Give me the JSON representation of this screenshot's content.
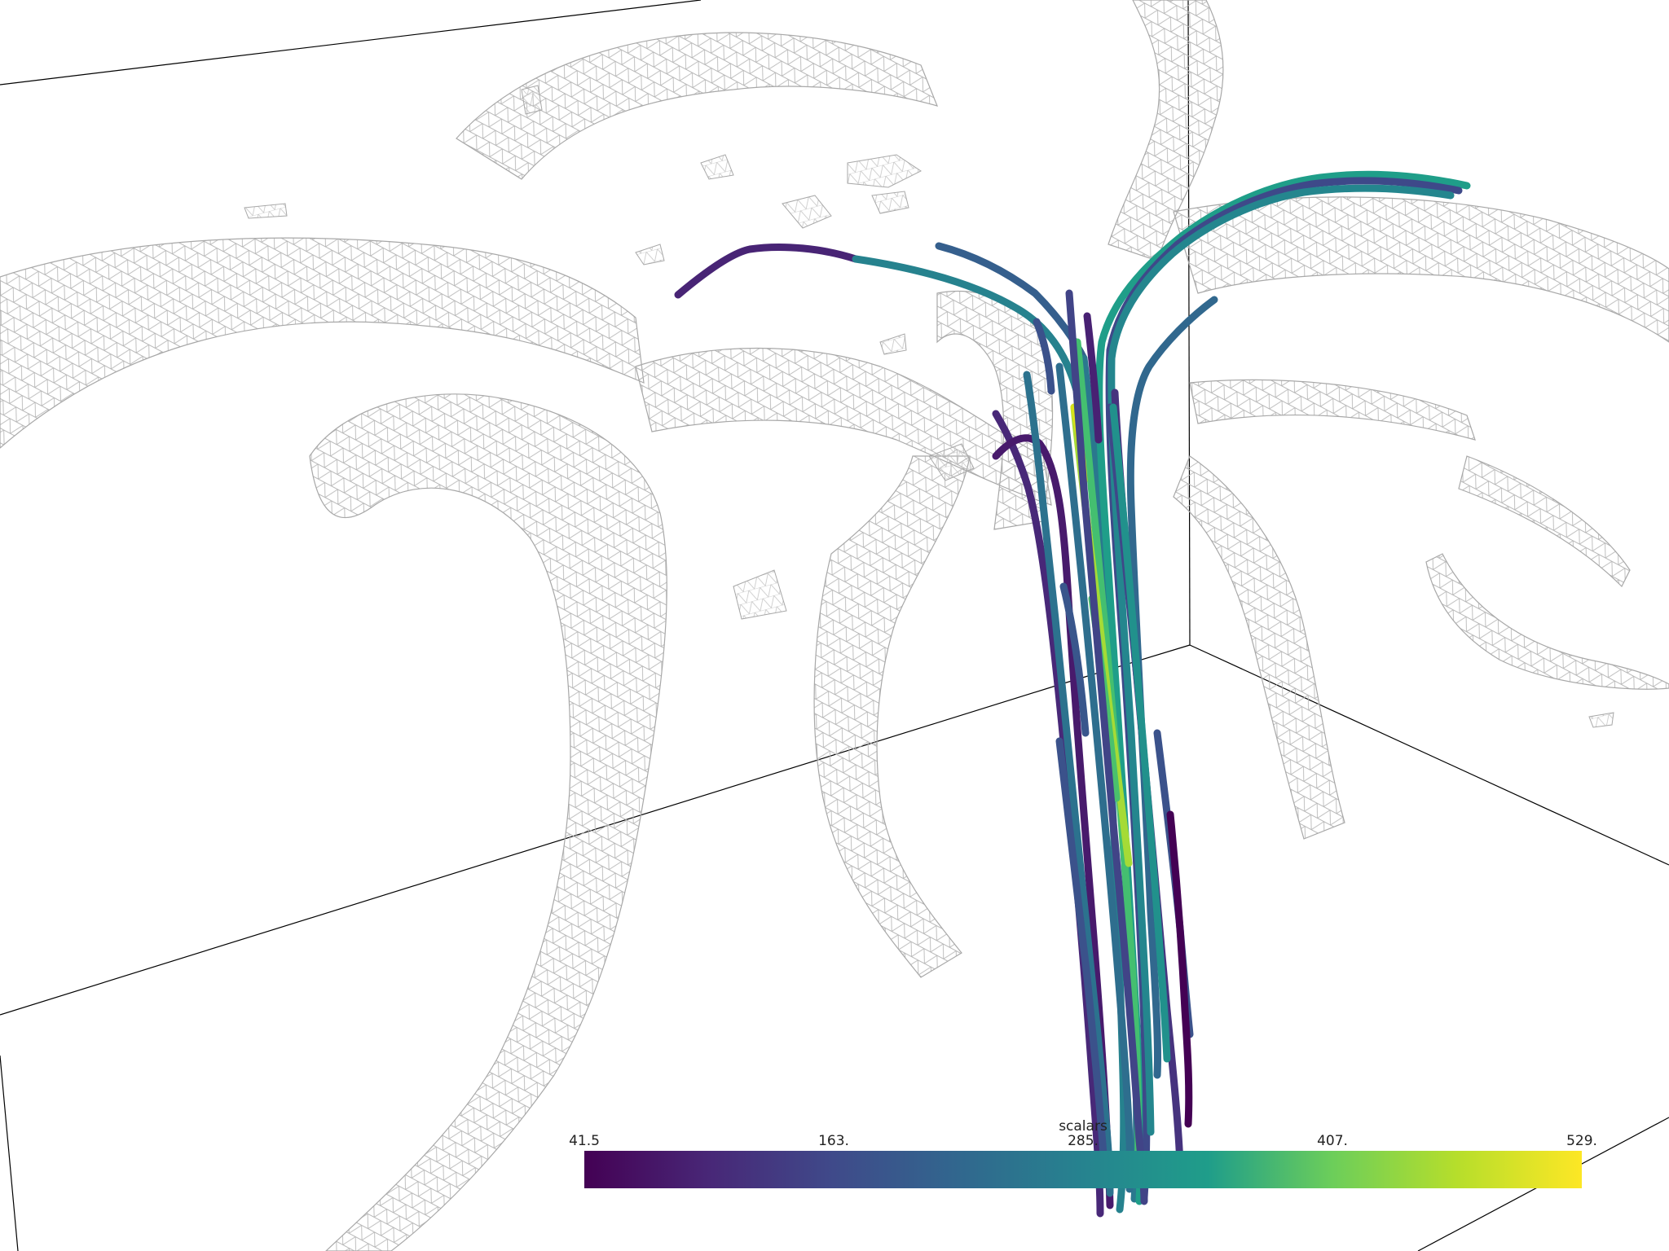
{
  "scene": {
    "mesh_color": "#b8b8b8",
    "axes_color": "#000000",
    "background": "#ffffff",
    "colormap": [
      "#440154",
      "#482777",
      "#3f4a8a",
      "#31678e",
      "#26838f",
      "#1f9d8a",
      "#6cce5a",
      "#b6de2b",
      "#fde725"
    ]
  },
  "scalar_bar": {
    "title": "scalars",
    "min": 41.5,
    "max": 529,
    "tick_labels": [
      "41.5",
      "163.",
      "285.",
      "407.",
      "529."
    ]
  }
}
